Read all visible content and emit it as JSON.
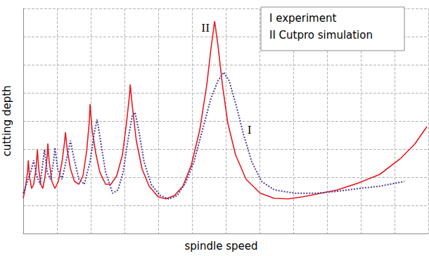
{
  "chart_data": {
    "type": "line",
    "x_label": "spindle speed",
    "y_label": "cutting depth",
    "xlim": [
      0,
      12
    ],
    "xticks": [
      0,
      1,
      2,
      3,
      4,
      5,
      6,
      7,
      8,
      9,
      10,
      11,
      12
    ],
    "ylim": [
      0,
      8
    ],
    "yticks": [
      0,
      1,
      2,
      3,
      4,
      5,
      6,
      7,
      8
    ],
    "grid": true,
    "tick_labels": false,
    "legend": "upper right",
    "series": [
      {
        "name": "I experiment",
        "color": "#4a3c9c",
        "line_style": "dotted",
        "marker": "none",
        "x": [
          0,
          0.15,
          0.25,
          0.31,
          0.4,
          0.5,
          0.56,
          0.63,
          0.71,
          0.81,
          0.9,
          0.94,
          1.02,
          1.15,
          1.29,
          1.4,
          1.5,
          1.65,
          1.81,
          1.98,
          2.1,
          2.19,
          2.29,
          2.44,
          2.65,
          2.81,
          2.96,
          3.1,
          3.23,
          3.31,
          3.42,
          3.58,
          3.79,
          4.06,
          4.31,
          4.56,
          4.81,
          5.06,
          5.31,
          5.56,
          5.77,
          5.94,
          6.1,
          6.31,
          6.52,
          6.77,
          7.06,
          7.44,
          8.06,
          8.69,
          9.31,
          9.94,
          10.56,
          11.29
        ],
        "values": [
          1.43,
          1.93,
          2.3,
          2.6,
          2.05,
          1.75,
          2.3,
          2.98,
          2.18,
          1.93,
          2.55,
          3.05,
          2.3,
          1.93,
          2.68,
          3.3,
          2.68,
          1.93,
          1.75,
          2.55,
          3.55,
          4.05,
          3.3,
          2.18,
          1.43,
          1.55,
          2.18,
          3.3,
          4.18,
          4.3,
          3.68,
          2.55,
          1.75,
          1.35,
          1.23,
          1.35,
          1.8,
          2.55,
          3.68,
          4.8,
          5.43,
          5.73,
          5.43,
          4.55,
          3.55,
          2.55,
          1.85,
          1.55,
          1.43,
          1.43,
          1.5,
          1.6,
          1.68,
          1.85
        ]
      },
      {
        "name": "II Cutpro simulation",
        "color": "#e8191f",
        "line_style": "solid",
        "marker": "none",
        "x": [
          0,
          0.06,
          0.13,
          0.15,
          0.19,
          0.25,
          0.31,
          0.38,
          0.42,
          0.46,
          0.52,
          0.58,
          0.65,
          0.71,
          0.73,
          0.77,
          0.85,
          0.94,
          1.04,
          1.15,
          1.23,
          1.25,
          1.31,
          1.4,
          1.52,
          1.65,
          1.77,
          1.88,
          1.96,
          1.98,
          2.04,
          2.15,
          2.27,
          2.44,
          2.6,
          2.77,
          2.94,
          3.06,
          3.15,
          3.17,
          3.23,
          3.35,
          3.52,
          3.73,
          4.0,
          4.23,
          4.48,
          4.73,
          4.98,
          5.23,
          5.44,
          5.56,
          5.67,
          5.77,
          5.9,
          6.06,
          6.29,
          6.6,
          7.02,
          7.44,
          7.85,
          8.27,
          8.69,
          9.31,
          9.94,
          10.56,
          11.19,
          11.6,
          11.96
        ],
        "values": [
          1.25,
          1.6,
          2.18,
          2.6,
          2.0,
          1.6,
          1.75,
          2.3,
          2.98,
          2.3,
          1.75,
          1.6,
          2.05,
          2.75,
          3.2,
          2.55,
          1.85,
          1.6,
          1.85,
          2.55,
          3.3,
          3.6,
          2.93,
          2.3,
          1.85,
          1.75,
          2.05,
          2.93,
          4.0,
          4.6,
          3.68,
          2.85,
          2.18,
          1.75,
          1.75,
          2.05,
          2.8,
          3.93,
          4.93,
          5.3,
          4.55,
          3.3,
          2.3,
          1.68,
          1.3,
          1.23,
          1.35,
          1.68,
          2.43,
          3.68,
          5.3,
          6.55,
          7.55,
          6.68,
          5.3,
          3.93,
          2.8,
          1.93,
          1.43,
          1.25,
          1.23,
          1.3,
          1.4,
          1.55,
          1.8,
          2.1,
          2.68,
          3.18,
          3.8
        ]
      }
    ],
    "annotations": [
      {
        "text": "II",
        "x": 5.4,
        "y": 7.3
      },
      {
        "text": "I",
        "x": 6.7,
        "y": 3.68
      }
    ]
  }
}
